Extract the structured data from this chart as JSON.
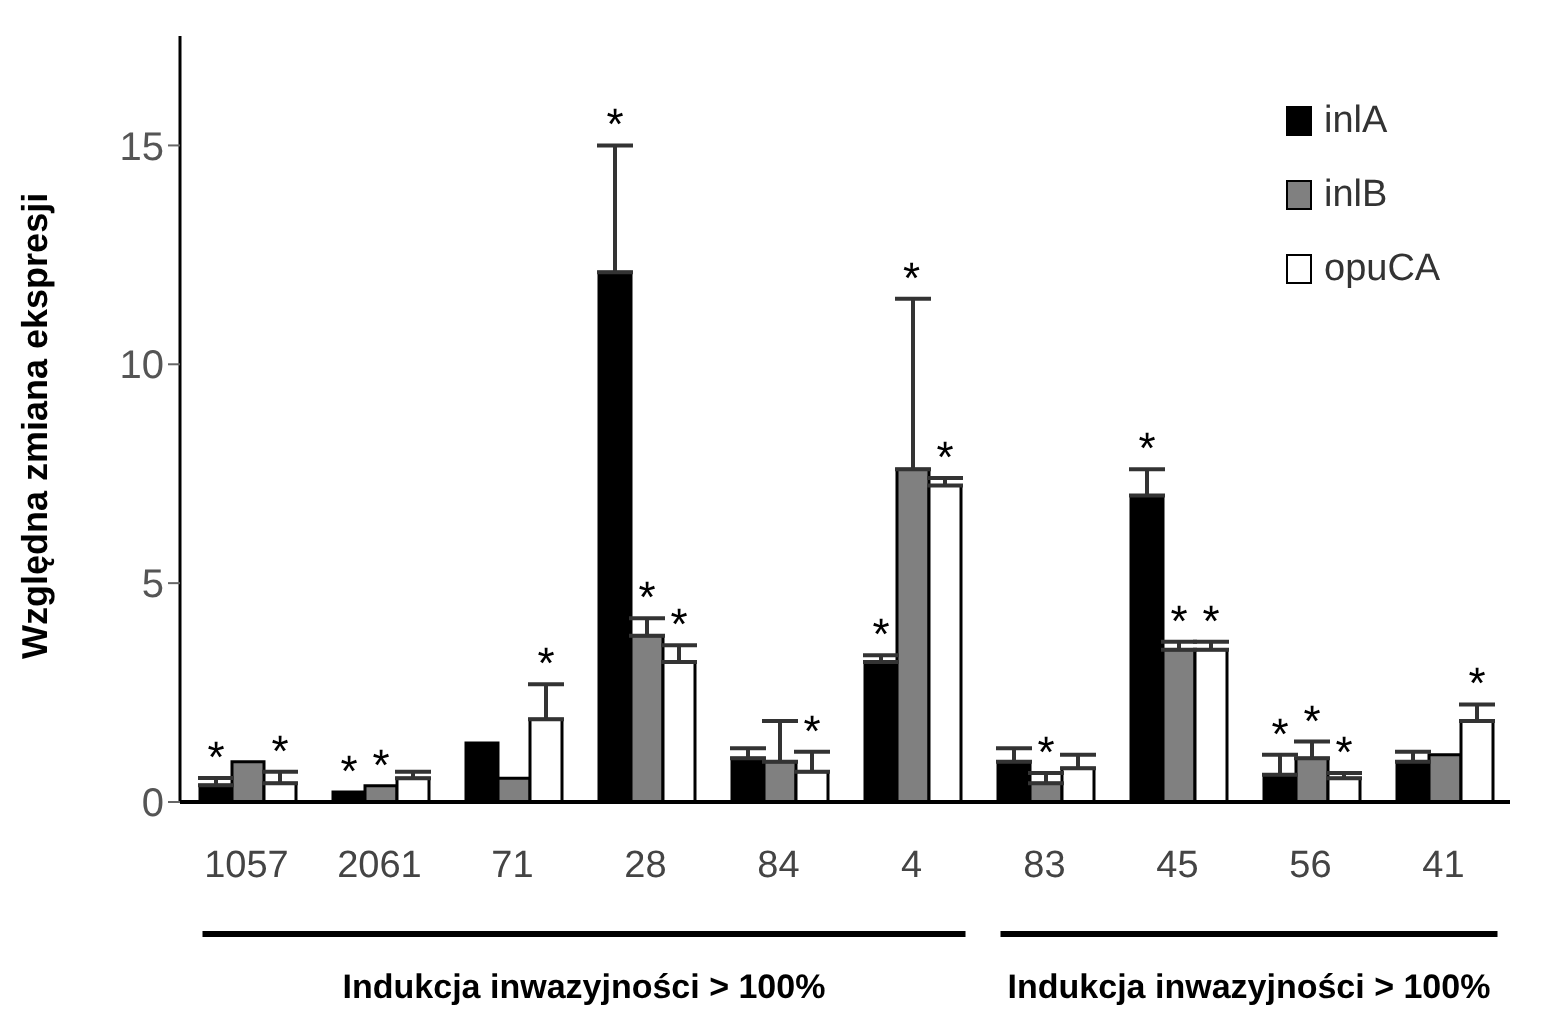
{
  "chart_data": {
    "type": "bar",
    "ylabel": "Względna zmiana ekspresji",
    "categories": [
      "1057",
      "2061",
      "71",
      "28",
      "84",
      "4",
      "83",
      "45",
      "56",
      "41"
    ],
    "series": [
      {
        "name": "inlA",
        "color": "#000000",
        "values": [
          0.38,
          0.23,
          1.35,
          12.1,
          1.0,
          3.2,
          0.92,
          7.0,
          0.62,
          0.92
        ],
        "errors": [
          [
            0.38,
            0.55
          ],
          null,
          null,
          [
            12.1,
            15.0
          ],
          [
            1.0,
            1.23
          ],
          [
            3.2,
            3.35
          ],
          [
            0.92,
            1.23
          ],
          [
            7.0,
            7.6
          ],
          [
            0.62,
            1.08
          ],
          [
            0.92,
            1.15
          ]
        ],
        "value_labels": [
          "*",
          "*",
          null,
          "*",
          null,
          "*",
          null,
          "*",
          "*",
          null
        ]
      },
      {
        "name": "inlB",
        "color": "#808080",
        "values": [
          0.92,
          0.37,
          0.54,
          3.8,
          0.92,
          7.6,
          0.43,
          3.48,
          1.0,
          1.08
        ],
        "errors": [
          null,
          null,
          null,
          [
            3.8,
            4.2
          ],
          [
            0.92,
            1.85
          ],
          [
            7.6,
            11.5
          ],
          [
            0.43,
            0.66
          ],
          [
            3.48,
            3.66
          ],
          [
            1.0,
            1.38
          ],
          null
        ],
        "value_labels": [
          null,
          "*",
          null,
          "*",
          null,
          null,
          "*",
          "*",
          "*",
          null
        ]
      },
      {
        "name": "opuCA",
        "color": "#ffffff",
        "values": [
          0.43,
          0.54,
          1.89,
          3.2,
          0.69,
          7.23,
          0.77,
          3.48,
          0.54,
          1.85
        ],
        "errors": [
          [
            0.43,
            0.69
          ],
          [
            0.54,
            0.69
          ],
          [
            1.89,
            2.69
          ],
          [
            3.2,
            3.58
          ],
          [
            0.69,
            1.15
          ],
          [
            7.23,
            7.4
          ],
          [
            0.77,
            1.08
          ],
          [
            3.48,
            3.66
          ],
          [
            0.54,
            0.66
          ],
          [
            1.85,
            2.23
          ]
        ],
        "value_labels": [
          "*",
          null,
          "*",
          "*",
          "*",
          "*",
          null,
          "*",
          "*",
          "*"
        ]
      }
    ],
    "ylim": [
      0,
      17.5
    ],
    "yticks": [
      0,
      5,
      10,
      15
    ],
    "grid": false,
    "legend": "top right",
    "annotations": [
      "Indukcja inwazyjności > 100%",
      "Indukcja inwazyjności > 100%",
      {
        "text": "*",
        "x": "4",
        "y": 11.5
      }
    ]
  }
}
